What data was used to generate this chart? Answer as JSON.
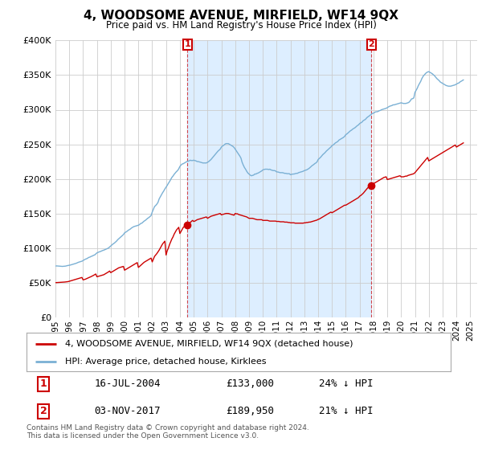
{
  "title": "4, WOODSOME AVENUE, MIRFIELD, WF14 9QX",
  "subtitle": "Price paid vs. HM Land Registry's House Price Index (HPI)",
  "legend_property": "4, WOODSOME AVENUE, MIRFIELD, WF14 9QX (detached house)",
  "legend_hpi": "HPI: Average price, detached house, Kirklees",
  "annotation1_label": "1",
  "annotation1_date": "16-JUL-2004",
  "annotation1_price": "£133,000",
  "annotation1_hpi": "24% ↓ HPI",
  "annotation2_label": "2",
  "annotation2_date": "03-NOV-2017",
  "annotation2_price": "£189,950",
  "annotation2_hpi": "21% ↓ HPI",
  "footer": "Contains HM Land Registry data © Crown copyright and database right 2024.\nThis data is licensed under the Open Government Licence v3.0.",
  "property_color": "#cc0000",
  "hpi_color": "#7ab0d4",
  "hpi_fill_color": "#ddeeff",
  "grid_color": "#cccccc",
  "annotation_box_color": "#cc0000",
  "bg_color": "#ffffff",
  "ylim": [
    0,
    400000
  ],
  "yticks": [
    0,
    50000,
    100000,
    150000,
    200000,
    250000,
    300000,
    350000,
    400000
  ],
  "xlim_start": 1995.0,
  "xlim_end": 2025.5,
  "sale1_x": 2004.54,
  "sale1_y": 133000,
  "sale2_x": 2017.84,
  "sale2_y": 189950,
  "hpi_x": [
    1995.0,
    1995.083,
    1995.167,
    1995.25,
    1995.333,
    1995.417,
    1995.5,
    1995.583,
    1995.667,
    1995.75,
    1995.833,
    1995.917,
    1996.0,
    1996.083,
    1996.167,
    1996.25,
    1996.333,
    1996.417,
    1996.5,
    1996.583,
    1996.667,
    1996.75,
    1996.833,
    1996.917,
    1997.0,
    1997.083,
    1997.167,
    1997.25,
    1997.333,
    1997.417,
    1997.5,
    1997.583,
    1997.667,
    1997.75,
    1997.833,
    1997.917,
    1998.0,
    1998.083,
    1998.167,
    1998.25,
    1998.333,
    1998.417,
    1998.5,
    1998.583,
    1998.667,
    1998.75,
    1998.833,
    1998.917,
    1999.0,
    1999.083,
    1999.167,
    1999.25,
    1999.333,
    1999.417,
    1999.5,
    1999.583,
    1999.667,
    1999.75,
    1999.833,
    1999.917,
    2000.0,
    2000.083,
    2000.167,
    2000.25,
    2000.333,
    2000.417,
    2000.5,
    2000.583,
    2000.667,
    2000.75,
    2000.833,
    2000.917,
    2001.0,
    2001.083,
    2001.167,
    2001.25,
    2001.333,
    2001.417,
    2001.5,
    2001.583,
    2001.667,
    2001.75,
    2001.833,
    2001.917,
    2002.0,
    2002.083,
    2002.167,
    2002.25,
    2002.333,
    2002.417,
    2002.5,
    2002.583,
    2002.667,
    2002.75,
    2002.833,
    2002.917,
    2003.0,
    2003.083,
    2003.167,
    2003.25,
    2003.333,
    2003.417,
    2003.5,
    2003.583,
    2003.667,
    2003.75,
    2003.833,
    2003.917,
    2004.0,
    2004.083,
    2004.167,
    2004.25,
    2004.333,
    2004.417,
    2004.5,
    2004.583,
    2004.667,
    2004.75,
    2004.833,
    2004.917,
    2005.0,
    2005.083,
    2005.167,
    2005.25,
    2005.333,
    2005.417,
    2005.5,
    2005.583,
    2005.667,
    2005.75,
    2005.833,
    2005.917,
    2006.0,
    2006.083,
    2006.167,
    2006.25,
    2006.333,
    2006.417,
    2006.5,
    2006.583,
    2006.667,
    2006.75,
    2006.833,
    2006.917,
    2007.0,
    2007.083,
    2007.167,
    2007.25,
    2007.333,
    2007.417,
    2007.5,
    2007.583,
    2007.667,
    2007.75,
    2007.833,
    2007.917,
    2008.0,
    2008.083,
    2008.167,
    2008.25,
    2008.333,
    2008.417,
    2008.5,
    2008.583,
    2008.667,
    2008.75,
    2008.833,
    2008.917,
    2009.0,
    2009.083,
    2009.167,
    2009.25,
    2009.333,
    2009.417,
    2009.5,
    2009.583,
    2009.667,
    2009.75,
    2009.833,
    2009.917,
    2010.0,
    2010.083,
    2010.167,
    2010.25,
    2010.333,
    2010.417,
    2010.5,
    2010.583,
    2010.667,
    2010.75,
    2010.833,
    2010.917,
    2011.0,
    2011.083,
    2011.167,
    2011.25,
    2011.333,
    2011.417,
    2011.5,
    2011.583,
    2011.667,
    2011.75,
    2011.833,
    2011.917,
    2012.0,
    2012.083,
    2012.167,
    2012.25,
    2012.333,
    2012.417,
    2012.5,
    2012.583,
    2012.667,
    2012.75,
    2012.833,
    2012.917,
    2013.0,
    2013.083,
    2013.167,
    2013.25,
    2013.333,
    2013.417,
    2013.5,
    2013.583,
    2013.667,
    2013.75,
    2013.833,
    2013.917,
    2014.0,
    2014.083,
    2014.167,
    2014.25,
    2014.333,
    2014.417,
    2014.5,
    2014.583,
    2014.667,
    2014.75,
    2014.833,
    2014.917,
    2015.0,
    2015.083,
    2015.167,
    2015.25,
    2015.333,
    2015.417,
    2015.5,
    2015.583,
    2015.667,
    2015.75,
    2015.833,
    2015.917,
    2016.0,
    2016.083,
    2016.167,
    2016.25,
    2016.333,
    2016.417,
    2016.5,
    2016.583,
    2016.667,
    2016.75,
    2016.833,
    2016.917,
    2017.0,
    2017.083,
    2017.167,
    2017.25,
    2017.333,
    2017.417,
    2017.5,
    2017.583,
    2017.667,
    2017.75,
    2017.833,
    2017.917,
    2018.0,
    2018.083,
    2018.167,
    2018.25,
    2018.333,
    2018.417,
    2018.5,
    2018.583,
    2018.667,
    2018.75,
    2018.833,
    2018.917,
    2019.0,
    2019.083,
    2019.167,
    2019.25,
    2019.333,
    2019.417,
    2019.5,
    2019.583,
    2019.667,
    2019.75,
    2019.833,
    2019.917,
    2020.0,
    2020.083,
    2020.167,
    2020.25,
    2020.333,
    2020.417,
    2020.5,
    2020.583,
    2020.667,
    2020.75,
    2020.833,
    2020.917,
    2021.0,
    2021.083,
    2021.167,
    2021.25,
    2021.333,
    2021.417,
    2021.5,
    2021.583,
    2021.667,
    2021.75,
    2021.833,
    2021.917,
    2022.0,
    2022.083,
    2022.167,
    2022.25,
    2022.333,
    2022.417,
    2022.5,
    2022.583,
    2022.667,
    2022.75,
    2022.833,
    2022.917,
    2023.0,
    2023.083,
    2023.167,
    2023.25,
    2023.333,
    2023.417,
    2023.5,
    2023.583,
    2023.667,
    2023.75,
    2023.833,
    2023.917,
    2024.0,
    2024.083,
    2024.167,
    2024.25,
    2024.333,
    2024.417,
    2024.5
  ],
  "hpi_y": [
    74000,
    74200,
    74100,
    74000,
    73800,
    73600,
    73500,
    73600,
    73800,
    74000,
    74500,
    74800,
    75000,
    75500,
    76000,
    76500,
    77000,
    77500,
    78000,
    78800,
    79500,
    80000,
    80500,
    81000,
    82000,
    83000,
    84000,
    84500,
    85500,
    86500,
    87000,
    88000,
    88500,
    89500,
    90000,
    91500,
    93000,
    93800,
    94500,
    95000,
    95800,
    96500,
    97000,
    97800,
    98500,
    99200,
    100000,
    101500,
    103000,
    104500,
    106000,
    107000,
    108500,
    110000,
    112000,
    113500,
    115000,
    116500,
    118000,
    119500,
    122000,
    123000,
    124000,
    125500,
    126500,
    127500,
    129000,
    130000,
    131000,
    131500,
    132000,
    132500,
    133000,
    134000,
    135500,
    136000,
    137500,
    139000,
    140000,
    141500,
    143000,
    144000,
    145500,
    147000,
    152000,
    156000,
    160000,
    161500,
    163500,
    166000,
    171000,
    174000,
    177000,
    180000,
    182500,
    185500,
    188000,
    190500,
    193500,
    196000,
    199000,
    202000,
    204000,
    206500,
    208500,
    210500,
    212000,
    214500,
    218000,
    220000,
    221500,
    222000,
    223000,
    224000,
    225000,
    225500,
    226000,
    227000,
    226500,
    226500,
    227000,
    226500,
    226000,
    225000,
    225000,
    224500,
    224000,
    223500,
    223000,
    223000,
    223000,
    223000,
    224000,
    225000,
    226500,
    228000,
    230000,
    232000,
    234000,
    236000,
    238000,
    240000,
    241500,
    243000,
    246000,
    247500,
    248500,
    250000,
    251000,
    251000,
    251000,
    250000,
    249000,
    248000,
    247000,
    245500,
    243000,
    240500,
    238000,
    235500,
    233000,
    230000,
    224000,
    220000,
    216500,
    214000,
    211000,
    208500,
    207000,
    205500,
    204500,
    205000,
    205500,
    207000,
    207000,
    208000,
    208500,
    209500,
    210500,
    211500,
    213000,
    213500,
    214000,
    214000,
    214000,
    213500,
    214000,
    213000,
    212500,
    212000,
    212000,
    211500,
    210000,
    210000,
    209500,
    209000,
    209000,
    209000,
    208500,
    208000,
    208000,
    207500,
    207500,
    207500,
    206000,
    206500,
    207000,
    207000,
    207500,
    208000,
    208000,
    209000,
    209500,
    210000,
    210500,
    211000,
    212000,
    212500,
    213000,
    214000,
    215000,
    216500,
    218000,
    219500,
    220500,
    222000,
    223000,
    224500,
    228000,
    229500,
    231000,
    233000,
    235000,
    236500,
    238000,
    240000,
    241500,
    243000,
    244500,
    246000,
    248000,
    249000,
    250500,
    252000,
    253000,
    254000,
    256000,
    257000,
    258000,
    259000,
    260000,
    261500,
    264000,
    265000,
    266500,
    268000,
    269500,
    270500,
    272000,
    273000,
    274000,
    275500,
    277000,
    278000,
    280000,
    281000,
    282000,
    284000,
    285000,
    286000,
    288000,
    289500,
    290500,
    292000,
    293000,
    294500,
    295000,
    296000,
    297000,
    297000,
    297500,
    298500,
    299000,
    300000,
    300500,
    301000,
    301500,
    302000,
    303000,
    304000,
    305000,
    305500,
    306000,
    307000,
    307000,
    307500,
    308000,
    308500,
    309000,
    309500,
    310000,
    309500,
    309000,
    309000,
    309000,
    309500,
    310000,
    311000,
    313000,
    315500,
    316000,
    317000,
    325000,
    328000,
    331000,
    335000,
    338000,
    341000,
    345000,
    348000,
    350000,
    352000,
    353500,
    354500,
    355000,
    354000,
    353000,
    352000,
    350500,
    349000,
    347000,
    345000,
    343500,
    342000,
    340000,
    339000,
    338000,
    337000,
    336000,
    335000,
    334500,
    334000,
    334000,
    334000,
    334500,
    335000,
    335500,
    336000,
    337000,
    338000,
    338500,
    340000,
    341000,
    342000,
    343000
  ],
  "prop_x": [
    1995.0,
    1995.083,
    1995.167,
    1995.25,
    1995.333,
    1995.417,
    1995.5,
    1995.583,
    1995.667,
    1995.75,
    1995.833,
    1995.917,
    1996.0,
    1996.083,
    1996.167,
    1996.25,
    1996.333,
    1996.417,
    1996.5,
    1996.583,
    1996.667,
    1996.75,
    1996.833,
    1996.917,
    1997.0,
    1997.083,
    1997.167,
    1997.25,
    1997.333,
    1997.417,
    1997.5,
    1997.583,
    1997.667,
    1997.75,
    1997.833,
    1997.917,
    1998.0,
    1998.083,
    1998.167,
    1998.25,
    1998.333,
    1998.417,
    1998.5,
    1998.583,
    1998.667,
    1998.75,
    1998.833,
    1998.917,
    1999.0,
    1999.083,
    1999.167,
    1999.25,
    1999.333,
    1999.417,
    1999.5,
    1999.583,
    1999.667,
    1999.75,
    1999.833,
    1999.917,
    2000.0,
    2000.083,
    2000.167,
    2000.25,
    2000.333,
    2000.417,
    2000.5,
    2000.583,
    2000.667,
    2000.75,
    2000.833,
    2000.917,
    2001.0,
    2001.083,
    2001.167,
    2001.25,
    2001.333,
    2001.417,
    2001.5,
    2001.583,
    2001.667,
    2001.75,
    2001.833,
    2001.917,
    2002.0,
    2002.083,
    2002.167,
    2002.25,
    2002.333,
    2002.417,
    2002.5,
    2002.583,
    2002.667,
    2002.75,
    2002.833,
    2002.917,
    2003.0,
    2003.083,
    2003.167,
    2003.25,
    2003.333,
    2003.417,
    2003.5,
    2003.583,
    2003.667,
    2003.75,
    2003.833,
    2003.917,
    2004.0,
    2004.083,
    2004.167,
    2004.25,
    2004.333,
    2004.417,
    2004.54,
    2004.583,
    2004.667,
    2004.75,
    2004.833,
    2004.917,
    2005.0,
    2005.083,
    2005.167,
    2005.25,
    2005.333,
    2005.417,
    2005.5,
    2005.583,
    2005.667,
    2005.75,
    2005.833,
    2005.917,
    2006.0,
    2006.083,
    2006.167,
    2006.25,
    2006.333,
    2006.417,
    2006.5,
    2006.583,
    2006.667,
    2006.75,
    2006.833,
    2006.917,
    2007.0,
    2007.083,
    2007.167,
    2007.25,
    2007.333,
    2007.417,
    2007.5,
    2007.583,
    2007.667,
    2007.75,
    2007.833,
    2007.917,
    2008.0,
    2008.083,
    2008.167,
    2008.25,
    2008.333,
    2008.417,
    2008.5,
    2008.583,
    2008.667,
    2008.75,
    2008.833,
    2008.917,
    2009.0,
    2009.083,
    2009.167,
    2009.25,
    2009.333,
    2009.417,
    2009.5,
    2009.583,
    2009.667,
    2009.75,
    2009.833,
    2009.917,
    2010.0,
    2010.083,
    2010.167,
    2010.25,
    2010.333,
    2010.417,
    2010.5,
    2010.583,
    2010.667,
    2010.75,
    2010.833,
    2010.917,
    2011.0,
    2011.083,
    2011.167,
    2011.25,
    2011.333,
    2011.417,
    2011.5,
    2011.583,
    2011.667,
    2011.75,
    2011.833,
    2011.917,
    2012.0,
    2012.083,
    2012.167,
    2012.25,
    2012.333,
    2012.417,
    2012.5,
    2012.583,
    2012.667,
    2012.75,
    2012.833,
    2012.917,
    2013.0,
    2013.083,
    2013.167,
    2013.25,
    2013.333,
    2013.417,
    2013.5,
    2013.583,
    2013.667,
    2013.75,
    2013.833,
    2013.917,
    2014.0,
    2014.083,
    2014.167,
    2014.25,
    2014.333,
    2014.417,
    2014.5,
    2014.583,
    2014.667,
    2014.75,
    2014.833,
    2014.917,
    2015.0,
    2015.083,
    2015.167,
    2015.25,
    2015.333,
    2015.417,
    2015.5,
    2015.583,
    2015.667,
    2015.75,
    2015.833,
    2015.917,
    2016.0,
    2016.083,
    2016.167,
    2016.25,
    2016.333,
    2016.417,
    2016.5,
    2016.583,
    2016.667,
    2016.75,
    2016.833,
    2016.917,
    2017.0,
    2017.083,
    2017.167,
    2017.25,
    2017.333,
    2017.417,
    2017.5,
    2017.583,
    2017.667,
    2017.75,
    2017.84,
    2017.917,
    2018.0,
    2018.083,
    2018.167,
    2018.25,
    2018.333,
    2018.417,
    2018.5,
    2018.583,
    2018.667,
    2018.75,
    2018.833,
    2018.917,
    2019.0,
    2019.083,
    2019.167,
    2019.25,
    2019.333,
    2019.417,
    2019.5,
    2019.583,
    2019.667,
    2019.75,
    2019.833,
    2019.917,
    2020.0,
    2020.083,
    2020.167,
    2020.25,
    2020.333,
    2020.417,
    2020.5,
    2020.583,
    2020.667,
    2020.75,
    2020.833,
    2020.917,
    2021.0,
    2021.083,
    2021.167,
    2021.25,
    2021.333,
    2021.417,
    2021.5,
    2021.583,
    2021.667,
    2021.75,
    2021.833,
    2021.917,
    2022.0,
    2022.083,
    2022.167,
    2022.25,
    2022.333,
    2022.417,
    2022.5,
    2022.583,
    2022.667,
    2022.75,
    2022.833,
    2022.917,
    2023.0,
    2023.083,
    2023.167,
    2023.25,
    2023.333,
    2023.417,
    2023.5,
    2023.583,
    2023.667,
    2023.75,
    2023.833,
    2023.917,
    2024.0,
    2024.083,
    2024.167,
    2024.25,
    2024.333,
    2024.417,
    2024.5
  ],
  "prop_y": [
    50000,
    50100,
    50200,
    50300,
    50400,
    50500,
    50600,
    50700,
    50900,
    51100,
    51300,
    51500,
    52000,
    52500,
    53000,
    53500,
    54000,
    54500,
    55000,
    55500,
    56000,
    56500,
    57000,
    57500,
    54000,
    54500,
    55000,
    55800,
    56600,
    57300,
    58000,
    58800,
    59600,
    60500,
    61500,
    62500,
    58500,
    59000,
    59500,
    60000,
    60500,
    61000,
    61500,
    62500,
    63500,
    64500,
    65500,
    66800,
    64500,
    65500,
    66500,
    67500,
    68500,
    69500,
    70500,
    71500,
    72000,
    72500,
    73000,
    73500,
    68000,
    69000,
    70000,
    71000,
    72000,
    73000,
    74000,
    75000,
    76000,
    77000,
    78000,
    79000,
    72000,
    73500,
    75000,
    76500,
    78000,
    79500,
    80500,
    81500,
    82500,
    83500,
    84500,
    85500,
    80000,
    84000,
    88000,
    90000,
    92000,
    94500,
    97000,
    100000,
    103000,
    106000,
    108000,
    110000,
    90000,
    96000,
    100000,
    105000,
    109000,
    113000,
    116000,
    120000,
    123000,
    126000,
    128000,
    130000,
    121000,
    124000,
    127000,
    130000,
    131500,
    132500,
    133000,
    134000,
    135500,
    137000,
    138500,
    140000,
    138500,
    139000,
    140000,
    141000,
    141500,
    142000,
    142500,
    143000,
    143500,
    144000,
    144500,
    145000,
    143000,
    144000,
    145000,
    146000,
    146500,
    147000,
    147500,
    148000,
    148500,
    149000,
    149500,
    150000,
    148000,
    148500,
    149000,
    149500,
    150000,
    150000,
    150000,
    149500,
    149000,
    148500,
    148000,
    147500,
    150000,
    149500,
    149500,
    148500,
    148000,
    147500,
    147000,
    146500,
    146000,
    145500,
    145000,
    144000,
    143000,
    143000,
    143000,
    143000,
    142500,
    142000,
    141500,
    141000,
    141000,
    141000,
    141000,
    141000,
    140000,
    140000,
    140000,
    140000,
    140000,
    139500,
    139000,
    139000,
    139000,
    139000,
    139000,
    139000,
    138500,
    138500,
    138500,
    138000,
    138000,
    138000,
    138000,
    137500,
    137500,
    137500,
    137000,
    137000,
    136500,
    136500,
    136500,
    136500,
    136000,
    136000,
    136000,
    136000,
    136000,
    136000,
    136000,
    136000,
    136500,
    136500,
    137000,
    137000,
    137500,
    137500,
    138000,
    138500,
    139000,
    139500,
    140000,
    140500,
    141500,
    142000,
    143000,
    144000,
    145000,
    146000,
    147000,
    148000,
    149000,
    150000,
    151000,
    152000,
    151000,
    152000,
    153000,
    154000,
    155000,
    156000,
    157000,
    158000,
    159000,
    160000,
    161000,
    162000,
    162000,
    163000,
    164000,
    165000,
    166000,
    167000,
    168000,
    169000,
    170000,
    171000,
    172000,
    173000,
    175000,
    176000,
    177500,
    179000,
    181000,
    183000,
    185000,
    187000,
    188500,
    189500,
    189950,
    191000,
    193000,
    194000,
    195000,
    196000,
    197000,
    198000,
    199000,
    200000,
    201000,
    202000,
    202500,
    203000,
    199000,
    199500,
    200000,
    200500,
    201000,
    201500,
    202000,
    202500,
    203000,
    203500,
    204000,
    204500,
    203000,
    203000,
    203000,
    203500,
    204000,
    204000,
    205000,
    205500,
    206000,
    206500,
    207000,
    207500,
    209000,
    211000,
    213000,
    215000,
    217000,
    219000,
    221000,
    223000,
    225000,
    227000,
    229000,
    231000,
    226000,
    227000,
    228000,
    229000,
    230000,
    231000,
    232000,
    233000,
    234000,
    235000,
    236000,
    237000,
    238000,
    239000,
    240000,
    241000,
    242000,
    243000,
    244000,
    245000,
    246000,
    247000,
    248000,
    249000,
    246000,
    247000,
    248000,
    249000,
    250000,
    251000,
    252000
  ]
}
